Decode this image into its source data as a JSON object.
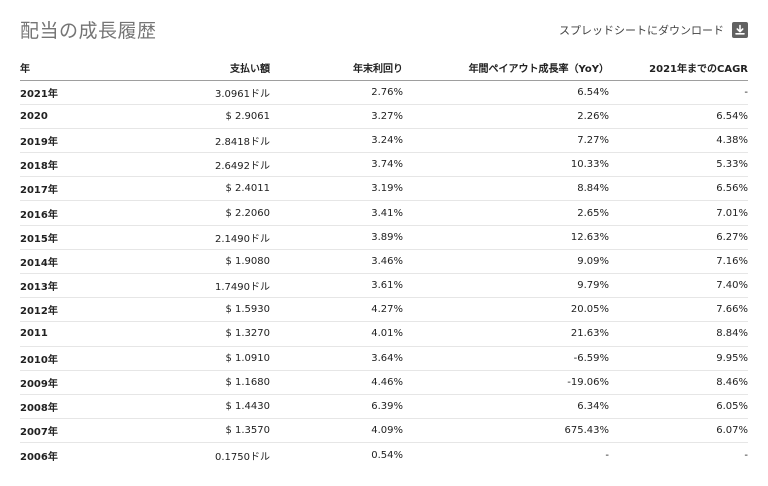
{
  "title": "配当の成長履歴",
  "download": {
    "label": "スプレッドシートにダウンロード",
    "icon": "download-icon"
  },
  "table": {
    "headers": {
      "year": "年",
      "paid": "支払い額",
      "yield": "年末利回り",
      "growth": "年間ペイアウト成長率（YoY）",
      "cagr": "2021年までのCAGR"
    },
    "rows": [
      {
        "year": "2021年",
        "paid": "3.0961ドル",
        "yield": "2.76%",
        "growth": "6.54%",
        "cagr": "-"
      },
      {
        "year": "2020",
        "paid": "$ 2.9061",
        "yield": "3.27%",
        "growth": "2.26%",
        "cagr": "6.54%"
      },
      {
        "year": "2019年",
        "paid": "2.8418ドル",
        "yield": "3.24%",
        "growth": "7.27%",
        "cagr": "4.38%"
      },
      {
        "year": "2018年",
        "paid": "2.6492ドル",
        "yield": "3.74%",
        "growth": "10.33%",
        "cagr": "5.33%"
      },
      {
        "year": "2017年",
        "paid": "$ 2.4011",
        "yield": "3.19%",
        "growth": "8.84%",
        "cagr": "6.56%"
      },
      {
        "year": "2016年",
        "paid": "$ 2.2060",
        "yield": "3.41%",
        "growth": "2.65%",
        "cagr": "7.01%"
      },
      {
        "year": "2015年",
        "paid": "2.1490ドル",
        "yield": "3.89%",
        "growth": "12.63%",
        "cagr": "6.27%"
      },
      {
        "year": "2014年",
        "paid": "$ 1.9080",
        "yield": "3.46%",
        "growth": "9.09%",
        "cagr": "7.16%"
      },
      {
        "year": "2013年",
        "paid": "1.7490ドル",
        "yield": "3.61%",
        "growth": "9.79%",
        "cagr": "7.40%"
      },
      {
        "year": "2012年",
        "paid": "$ 1.5930",
        "yield": "4.27%",
        "growth": "20.05%",
        "cagr": "7.66%"
      },
      {
        "year": "2011",
        "paid": "$ 1.3270",
        "yield": "4.01%",
        "growth": "21.63%",
        "cagr": "8.84%"
      },
      {
        "year": "2010年",
        "paid": "$ 1.0910",
        "yield": "3.64%",
        "growth": "-6.59%",
        "cagr": "9.95%"
      },
      {
        "year": "2009年",
        "paid": "$ 1.1680",
        "yield": "4.46%",
        "growth": "-19.06%",
        "cagr": "8.46%"
      },
      {
        "year": "2008年",
        "paid": "$ 1.4430",
        "yield": "6.39%",
        "growth": "6.34%",
        "cagr": "6.05%"
      },
      {
        "year": "2007年",
        "paid": "$ 1.3570",
        "yield": "4.09%",
        "growth": "675.43%",
        "cagr": "6.07%"
      },
      {
        "year": "2006年",
        "paid": "0.1750ドル",
        "yield": "0.54%",
        "growth": "-",
        "cagr": "-"
      }
    ]
  }
}
